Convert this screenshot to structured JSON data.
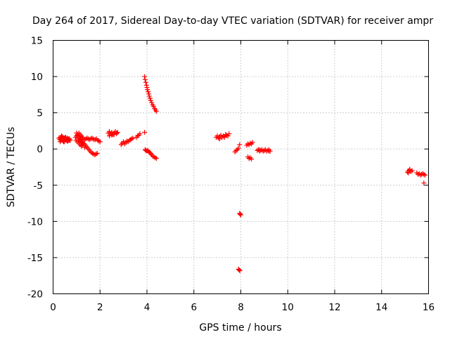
{
  "chart_data": {
    "type": "scatter",
    "title": "Day 264 of 2017, Sidereal Day-to-day VTEC variation (SDTVAR) for receiver ampr",
    "xlabel": "GPS time / hours",
    "ylabel": "SDTVAR / TECUs",
    "xlim": [
      0,
      16
    ],
    "ylim": [
      -20,
      15
    ],
    "xticks": [
      0,
      2,
      4,
      6,
      8,
      10,
      12,
      14,
      16
    ],
    "yticks": [
      -20,
      -15,
      -10,
      -5,
      0,
      5,
      10,
      15
    ],
    "xtick_labels": [
      "0",
      "2",
      "4",
      "6",
      "8",
      "10",
      "12",
      "14",
      "16"
    ],
    "ytick_labels": [
      "-20",
      "-15",
      "-10",
      "-5",
      "0",
      "5",
      "10",
      "15"
    ],
    "grid": true,
    "legend": "none",
    "marker": "+",
    "color": "#ff0000",
    "series": [
      {
        "x": [
          0.25,
          0.28,
          0.31,
          0.34,
          0.37,
          0.4,
          0.43,
          0.46,
          0.49,
          0.52,
          0.55,
          0.58,
          0.61,
          0.64,
          0.67,
          0.7,
          0.73,
          0.3,
          0.35,
          0.4,
          0.45,
          0.5,
          0.55,
          0.6,
          0.65,
          0.7,
          0.36,
          0.42,
          0.48,
          0.54,
          0.6,
          0.95,
          1.0,
          1.05,
          1.1,
          1.15,
          1.2,
          1.25,
          1.3,
          1.35,
          1.4,
          1.45,
          1.5,
          1.55,
          1.6,
          1.65,
          1.7,
          1.75,
          1.8,
          1.85,
          1.9,
          1.95,
          2.0,
          0.98,
          1.03,
          1.08,
          1.13,
          1.18,
          1.23,
          1.28,
          1.33,
          1.38,
          1.43,
          1.48,
          1.53,
          1.58,
          1.63,
          1.68,
          1.73,
          1.78,
          1.83,
          1.88,
          1.0,
          1.05,
          1.1,
          1.15,
          1.2,
          1.25,
          1.1,
          1.15,
          1.2,
          1.25,
          1.3,
          1.05,
          1.15,
          1.25,
          1.35,
          2.35,
          2.4,
          2.45,
          2.5,
          2.55,
          2.6,
          2.65,
          2.7,
          2.75,
          2.4,
          2.5,
          2.6,
          2.7,
          2.9,
          2.95,
          3.0,
          3.05,
          3.1,
          3.15,
          3.2,
          3.25,
          3.3,
          3.35,
          3.4,
          3.55,
          3.6,
          3.65,
          3.7,
          3.9,
          3.9,
          3.92,
          3.95,
          3.98,
          4.0,
          4.02,
          4.05,
          4.08,
          4.1,
          4.13,
          4.16,
          4.2,
          4.24,
          4.28,
          4.32,
          4.36,
          4.4,
          3.92,
          3.96,
          4.0,
          4.04,
          4.08,
          4.12,
          4.16,
          4.2,
          4.25,
          4.3,
          4.35,
          4.4
        ],
        "y": [
          1.5,
          1.3,
          1.6,
          1.2,
          1.4,
          1.7,
          1.1,
          1.5,
          1.3,
          1.6,
          1.2,
          1.4,
          1.5,
          1.1,
          1.3,
          1.4,
          1.2,
          1.0,
          1.6,
          1.2,
          1.0,
          1.5,
          1.3,
          1.1,
          1.4,
          1.2,
          1.8,
          1.3,
          1.0,
          1.6,
          1.1,
          1.6,
          1.8,
          2.0,
          2.2,
          2.0,
          1.8,
          1.6,
          1.4,
          1.3,
          1.4,
          1.5,
          1.4,
          1.3,
          1.4,
          1.5,
          1.4,
          1.3,
          1.3,
          1.4,
          1.2,
          1.1,
          1.0,
          1.2,
          1.0,
          1.2,
          1.4,
          1.2,
          1.0,
          0.8,
          0.7,
          0.5,
          0.3,
          0.1,
          -0.1,
          -0.3,
          -0.5,
          -0.6,
          -0.7,
          -0.8,
          -0.7,
          -0.6,
          2.2,
          1.8,
          1.5,
          1.2,
          1.0,
          1.6,
          0.8,
          0.6,
          0.4,
          0.9,
          0.7,
          1.9,
          1.7,
          0.5,
          0.2,
          2.2,
          2.4,
          2.1,
          2.3,
          2.0,
          2.2,
          2.4,
          2.1,
          2.3,
          1.8,
          1.9,
          2.0,
          2.2,
          0.6,
          0.8,
          1.0,
          0.7,
          0.9,
          1.1,
          1.0,
          1.2,
          1.3,
          1.4,
          1.5,
          1.6,
          1.8,
          1.9,
          2.1,
          2.3,
          10.0,
          9.6,
          9.2,
          8.8,
          8.5,
          8.2,
          7.9,
          7.6,
          7.3,
          7.0,
          6.7,
          6.4,
          6.1,
          5.9,
          5.6,
          5.4,
          5.2,
          -0.1,
          -0.2,
          -0.3,
          -0.2,
          -0.4,
          -0.5,
          -0.6,
          -0.8,
          -1.0,
          -1.1,
          -1.2,
          -1.3
        ]
      },
      {
        "x": [
          6.95,
          7.0,
          7.05,
          7.1,
          7.15,
          7.2,
          7.25,
          7.3,
          7.35,
          7.4,
          7.45,
          7.5,
          7.1,
          7.3,
          7.75,
          7.8,
          7.85,
          7.9,
          7.95,
          8.3,
          8.35,
          8.4,
          8.45,
          8.25,
          8.3,
          8.35,
          8.4,
          8.45,
          8.5,
          8.7,
          8.75,
          8.8,
          8.85,
          8.9,
          8.95,
          9.0,
          9.05,
          9.1,
          9.15,
          9.2,
          9.25,
          8.8,
          9.0,
          9.2,
          7.95,
          7.97,
          8.0,
          7.9,
          7.93,
          7.96
        ],
        "y": [
          1.6,
          1.8,
          1.5,
          1.7,
          1.9,
          1.6,
          1.8,
          1.7,
          2.0,
          1.9,
          1.8,
          2.1,
          1.4,
          1.6,
          -0.4,
          -0.2,
          -0.1,
          0.1,
          0.6,
          -1.1,
          -1.3,
          -1.2,
          -1.4,
          0.5,
          0.7,
          0.6,
          0.8,
          0.7,
          0.9,
          -0.2,
          -0.1,
          -0.3,
          -0.2,
          -0.1,
          -0.3,
          -0.2,
          -0.1,
          -0.3,
          -0.2,
          -0.1,
          -0.3,
          -0.1,
          -0.2,
          -0.3,
          -8.9,
          -9.0,
          -9.1,
          -16.6,
          -16.7,
          -16.8
        ]
      },
      {
        "x": [
          15.1,
          15.15,
          15.2,
          15.25,
          15.3,
          15.15,
          15.2,
          15.5,
          15.55,
          15.6,
          15.65,
          15.7,
          15.75,
          15.8,
          15.85,
          15.8
        ],
        "y": [
          -3.2,
          -3.0,
          -2.9,
          -3.1,
          -3.0,
          -3.3,
          -2.8,
          -3.3,
          -3.5,
          -3.4,
          -3.6,
          -3.5,
          -3.4,
          -3.5,
          -3.6,
          -4.7
        ]
      }
    ]
  }
}
